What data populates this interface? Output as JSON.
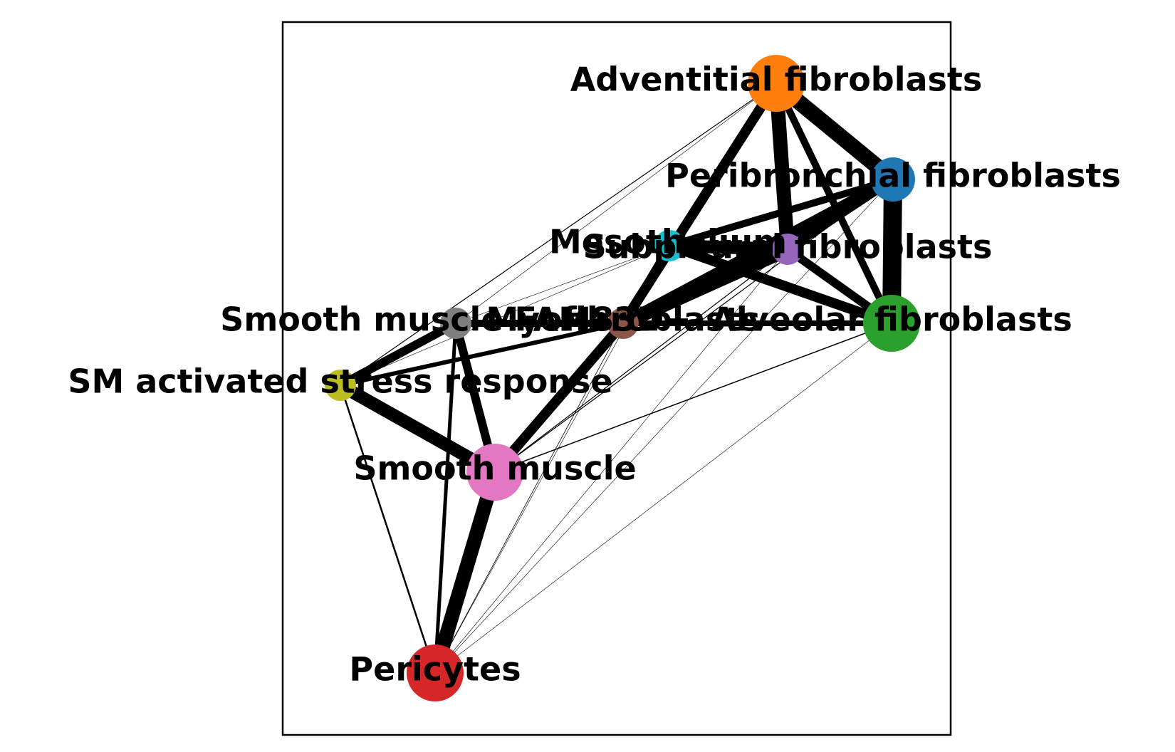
{
  "diagram": {
    "type": "network-graph",
    "nodes": [
      {
        "id": "adventitial",
        "label": "Adventitial fibroblasts",
        "color": "#ff7f0e",
        "size": "large"
      },
      {
        "id": "peribronchial",
        "label": "Peribronchial fibroblasts",
        "color": "#1f77b4",
        "size": "medium"
      },
      {
        "id": "mesothelium",
        "label": "Mesothelium",
        "color": "#17becf",
        "size": "small"
      },
      {
        "id": "subpleural",
        "label": "Subpleural fibroblasts",
        "color": "#9467bd",
        "size": "small"
      },
      {
        "id": "alveolar",
        "label": "Alveolar fibroblasts",
        "color": "#2ca02c",
        "size": "large"
      },
      {
        "id": "myofibroblasts",
        "label": "Myofibroblasts",
        "color": "#8c564b",
        "size": "small"
      },
      {
        "id": "sm_fgf",
        "label": "Smooth muscle FAM83D+",
        "color": "#7f7f7f",
        "size": "small"
      },
      {
        "id": "sm_stress",
        "label": "SM activated stress response",
        "color": "#bcbd22",
        "size": "small"
      },
      {
        "id": "smooth_muscle",
        "label": "Smooth muscle",
        "color": "#e377c2",
        "size": "large"
      },
      {
        "id": "pericytes",
        "label": "Pericytes",
        "color": "#d62728",
        "size": "large"
      }
    ],
    "edges": [
      {
        "source": "adventitial",
        "target": "peribronchial",
        "weight": 22
      },
      {
        "source": "adventitial",
        "target": "subpleural",
        "weight": 20
      },
      {
        "source": "adventitial",
        "target": "alveolar",
        "weight": 10
      },
      {
        "source": "adventitial",
        "target": "myofibroblasts",
        "weight": 14
      },
      {
        "source": "adventitial",
        "target": "sm_fgf",
        "weight": 0.6
      },
      {
        "source": "adventitial",
        "target": "sm_stress",
        "weight": 1.2
      },
      {
        "source": "peribronchial",
        "target": "alveolar",
        "weight": 26
      },
      {
        "source": "peribronchial",
        "target": "subpleural",
        "weight": 12
      },
      {
        "source": "peribronchial",
        "target": "mesothelium",
        "weight": 10
      },
      {
        "source": "peribronchial",
        "target": "myofibroblasts",
        "weight": 16
      },
      {
        "source": "mesothelium",
        "target": "subpleural",
        "weight": 18
      },
      {
        "source": "mesothelium",
        "target": "alveolar",
        "weight": 14
      },
      {
        "source": "mesothelium",
        "target": "myofibroblasts",
        "weight": 10
      },
      {
        "source": "mesothelium",
        "target": "sm_fgf",
        "weight": 0.6
      },
      {
        "source": "mesothelium",
        "target": "sm_stress",
        "weight": 0.6
      },
      {
        "source": "subpleural",
        "target": "alveolar",
        "weight": 12
      },
      {
        "source": "subpleural",
        "target": "myofibroblasts",
        "weight": 20
      },
      {
        "source": "subpleural",
        "target": "smooth_muscle",
        "weight": 1.2
      },
      {
        "source": "subpleural",
        "target": "pericytes",
        "weight": 0.6
      },
      {
        "source": "alveolar",
        "target": "myofibroblasts",
        "weight": 8
      },
      {
        "source": "alveolar",
        "target": "smooth_muscle",
        "weight": 1.5
      },
      {
        "source": "alveolar",
        "target": "pericytes",
        "weight": 0.6
      },
      {
        "source": "alveolar",
        "target": "sm_fgf",
        "weight": 1.2
      },
      {
        "source": "myofibroblasts",
        "target": "sm_fgf",
        "weight": 10
      },
      {
        "source": "myofibroblasts",
        "target": "sm_stress",
        "weight": 6
      },
      {
        "source": "myofibroblasts",
        "target": "smooth_muscle",
        "weight": 14
      },
      {
        "source": "myofibroblasts",
        "target": "pericytes",
        "weight": 0.8
      },
      {
        "source": "sm_fgf",
        "target": "sm_stress",
        "weight": 12
      },
      {
        "source": "sm_fgf",
        "target": "smooth_muscle",
        "weight": 12
      },
      {
        "source": "sm_fgf",
        "target": "pericytes",
        "weight": 5
      },
      {
        "source": "sm_stress",
        "target": "smooth_muscle",
        "weight": 18
      },
      {
        "source": "sm_stress",
        "target": "pericytes",
        "weight": 2.5
      },
      {
        "source": "smooth_muscle",
        "target": "pericytes",
        "weight": 20
      },
      {
        "source": "smooth_muscle",
        "target": "peribronchial",
        "weight": 1.2
      },
      {
        "source": "pericytes",
        "target": "mesothelium",
        "weight": 0.6
      },
      {
        "source": "pericytes",
        "target": "peribronchial",
        "weight": 0.6
      }
    ]
  }
}
